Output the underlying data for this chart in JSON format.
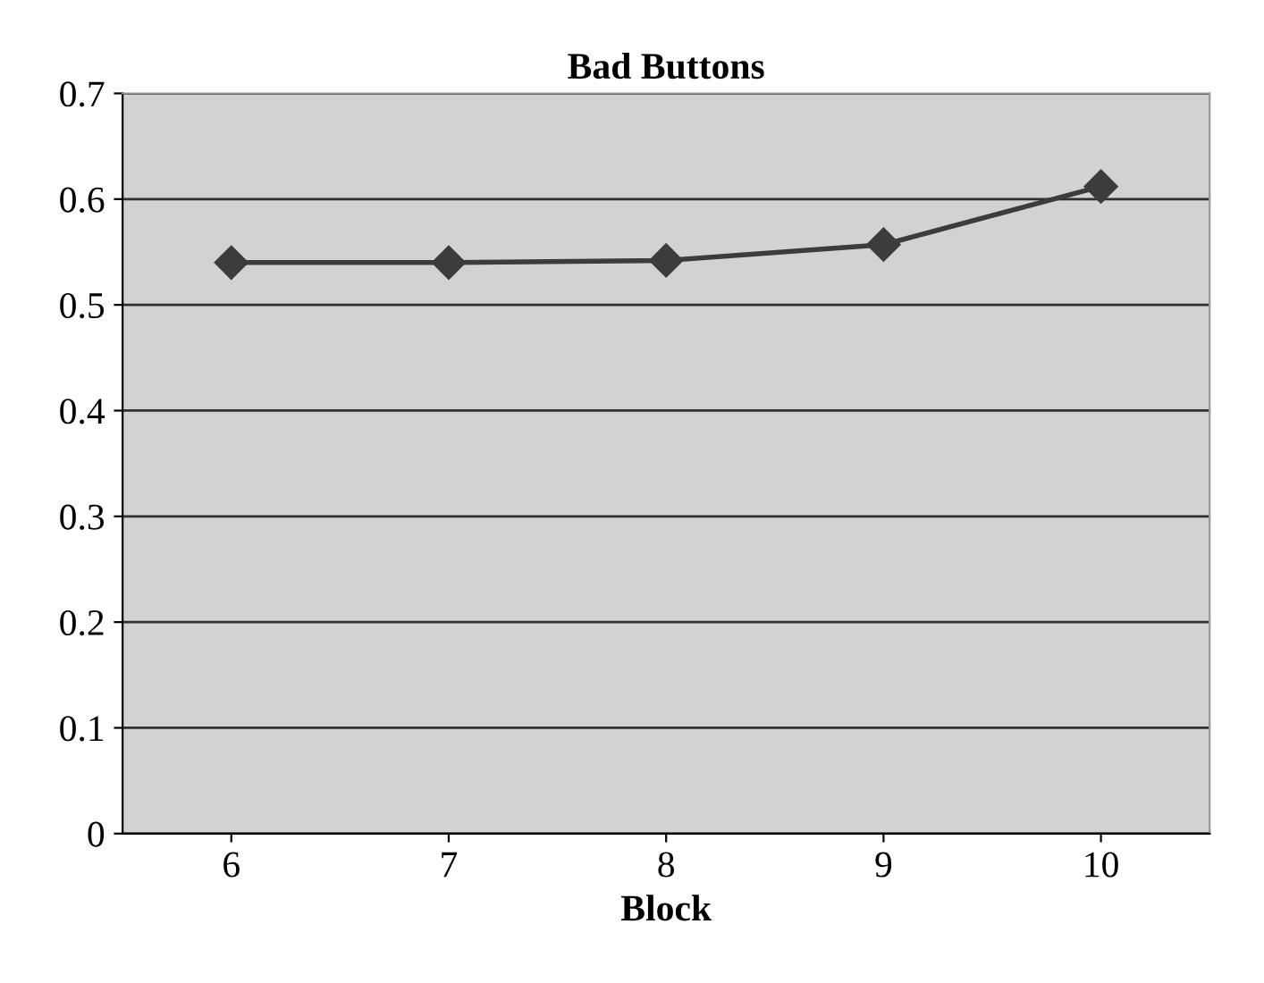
{
  "chart_data": {
    "type": "line",
    "title": "Bad Buttons",
    "xlabel": "Block",
    "categories": [
      "6",
      "7",
      "8",
      "9",
      "10"
    ],
    "series": [
      {
        "color": "#3c3c3c",
        "values": [
          0.54,
          0.54,
          0.542,
          0.557,
          0.612
        ]
      }
    ],
    "ylim": [
      0,
      0.7
    ],
    "yticks": [
      0,
      0.1,
      0.2,
      0.3,
      0.4,
      0.5,
      0.6,
      0.7
    ],
    "grid": "y",
    "marker": "diamond",
    "line_style": "solid"
  }
}
